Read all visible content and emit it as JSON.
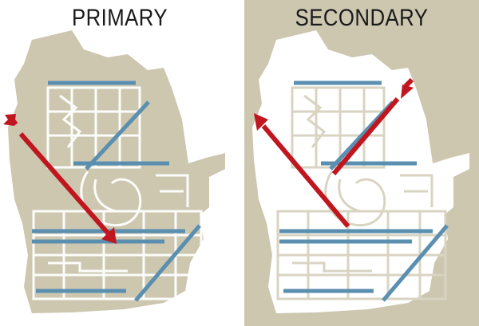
{
  "panels": [
    {
      "title": "PRIMARY",
      "background": "#ffffff",
      "terrain_color": "#cdc7b0",
      "flow": "northwest-to-southeast"
    },
    {
      "title": "SECONDARY",
      "background": "#cdc7b0",
      "terrain_color": "#ffffff",
      "flow": "southeast-to-northwest"
    }
  ],
  "colors": {
    "runway": "#5a8fb0",
    "arrow": "#c0161f",
    "taxiway": "#ffffff",
    "title_text": "#1a1a1a"
  },
  "icons": {
    "arrow_in": "red-arrow-approach",
    "arrow_out": "red-arrow-departure"
  }
}
